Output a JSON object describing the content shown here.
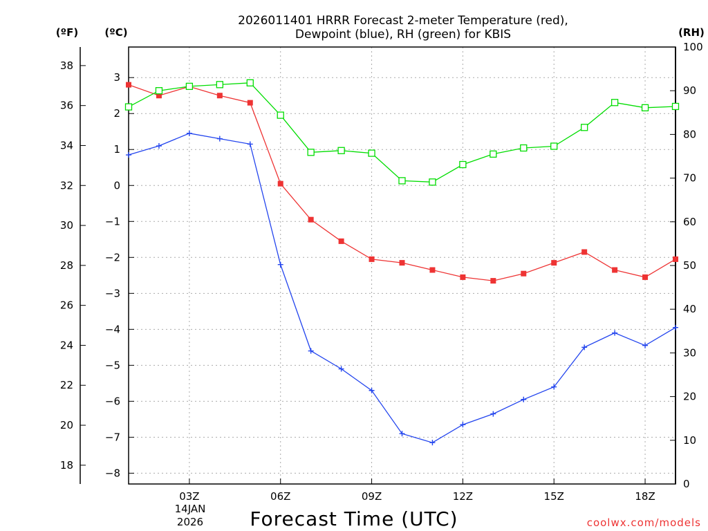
{
  "title_line1": "2026011401 HRRR Forecast 2-meter Temperature (red),",
  "title_line2": "Dewpoint (blue), RH (green) for KBIS",
  "axis_units": {
    "left_f": "(ºF)",
    "left_c": "(ºC)",
    "right_rh": "(RH)"
  },
  "xlabel": "Forecast Time (UTC)",
  "date_label": {
    "day": "14JAN",
    "year": "2026"
  },
  "watermark": "coolwx.com/models",
  "colors": {
    "temperature": "#ee3333",
    "dewpoint": "#2244ee",
    "rh": "#00dd00",
    "grid": "#aaaaaa"
  },
  "chart_data": {
    "type": "line",
    "x": [
      1,
      2,
      3,
      4,
      5,
      6,
      7,
      8,
      9,
      10,
      11,
      12,
      13,
      14,
      15,
      16,
      17,
      18,
      19
    ],
    "xlim": [
      1,
      19
    ],
    "x_ticks": [
      3,
      6,
      9,
      12,
      15,
      18
    ],
    "x_tick_labels": [
      "03Z",
      "06Z",
      "09Z",
      "12Z",
      "15Z",
      "18Z"
    ],
    "celsius_axis": {
      "range": [
        -8.3,
        3.85
      ],
      "ticks": [
        -8,
        -7,
        -6,
        -5,
        -4,
        -3,
        -2,
        -1,
        0,
        1,
        2,
        3
      ]
    },
    "fahrenheit_axis": {
      "range": [
        17.06,
        38.93
      ],
      "ticks": [
        18,
        20,
        22,
        24,
        26,
        28,
        30,
        32,
        34,
        36,
        38
      ]
    },
    "rh_axis": {
      "range": [
        0,
        100
      ],
      "ticks": [
        0,
        10,
        20,
        30,
        40,
        50,
        60,
        70,
        80,
        90,
        100
      ]
    },
    "series": [
      {
        "name": "Temperature",
        "axis": "celsius",
        "marker": "filled-square",
        "values": [
          2.8,
          2.5,
          2.75,
          2.5,
          2.3,
          0.05,
          -0.95,
          -1.55,
          -2.05,
          -2.15,
          -2.35,
          -2.55,
          -2.65,
          -2.45,
          -2.15,
          -1.85,
          -2.35,
          -2.55,
          -2.05
        ]
      },
      {
        "name": "Dewpoint",
        "axis": "celsius",
        "marker": "plus",
        "values": [
          0.85,
          1.1,
          1.45,
          1.3,
          1.15,
          -2.2,
          -4.6,
          -5.1,
          -5.7,
          -6.9,
          -7.15,
          -6.65,
          -6.35,
          -5.95,
          -5.6,
          -4.5,
          -4.1,
          -4.45,
          -3.95
        ]
      },
      {
        "name": "RH",
        "axis": "rh",
        "marker": "open-square",
        "values": [
          86.3,
          90.0,
          91.0,
          91.4,
          91.8,
          84.4,
          75.9,
          76.3,
          75.7,
          69.4,
          69.1,
          73.1,
          75.5,
          76.9,
          77.3,
          81.6,
          87.3,
          86.1,
          86.4
        ]
      }
    ]
  }
}
